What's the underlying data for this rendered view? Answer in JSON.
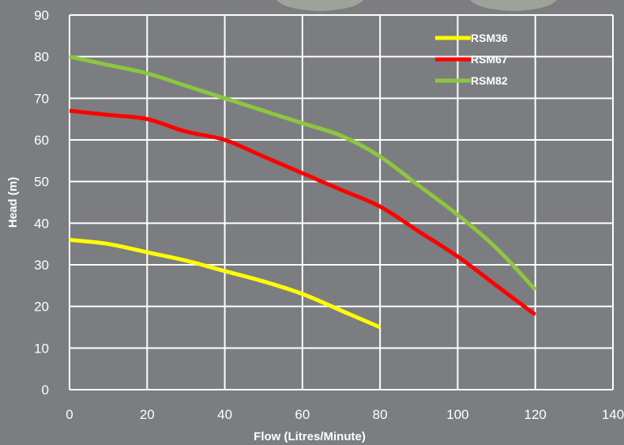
{
  "chart_data": {
    "type": "line",
    "title": "",
    "xlabel": "Flow (Litres/Minute)",
    "ylabel": "Head (m)",
    "xlim": [
      0,
      140
    ],
    "ylim": [
      0,
      90
    ],
    "xticks": [
      0,
      20,
      40,
      60,
      80,
      100,
      120,
      140
    ],
    "yticks": [
      0,
      10,
      20,
      30,
      40,
      50,
      60,
      70,
      80,
      90
    ],
    "grid": true,
    "legend_position": "top-right",
    "colors": {
      "background": "#7c7d80",
      "grid": "#ffffff",
      "text": "#ffffff"
    },
    "series": [
      {
        "name": "RSM36",
        "color": "#ffff00",
        "x": [
          0,
          10,
          20,
          30,
          40,
          50,
          60,
          70,
          80
        ],
        "y": [
          36,
          35,
          33,
          31,
          28.5,
          26,
          23,
          19,
          15
        ]
      },
      {
        "name": "RSM67",
        "color": "#ff0000",
        "x": [
          0,
          10,
          20,
          30,
          40,
          50,
          60,
          70,
          80,
          90,
          100,
          110,
          120
        ],
        "y": [
          67,
          66,
          65,
          62,
          60,
          56,
          52,
          48,
          44,
          38,
          32,
          25,
          18
        ]
      },
      {
        "name": "RSM82",
        "color": "#8dc63f",
        "x": [
          0,
          10,
          20,
          30,
          40,
          50,
          60,
          70,
          80,
          90,
          100,
          110,
          120
        ],
        "y": [
          80,
          78,
          76,
          73,
          70,
          67,
          64,
          61,
          56,
          49,
          42,
          34,
          24
        ]
      }
    ]
  }
}
